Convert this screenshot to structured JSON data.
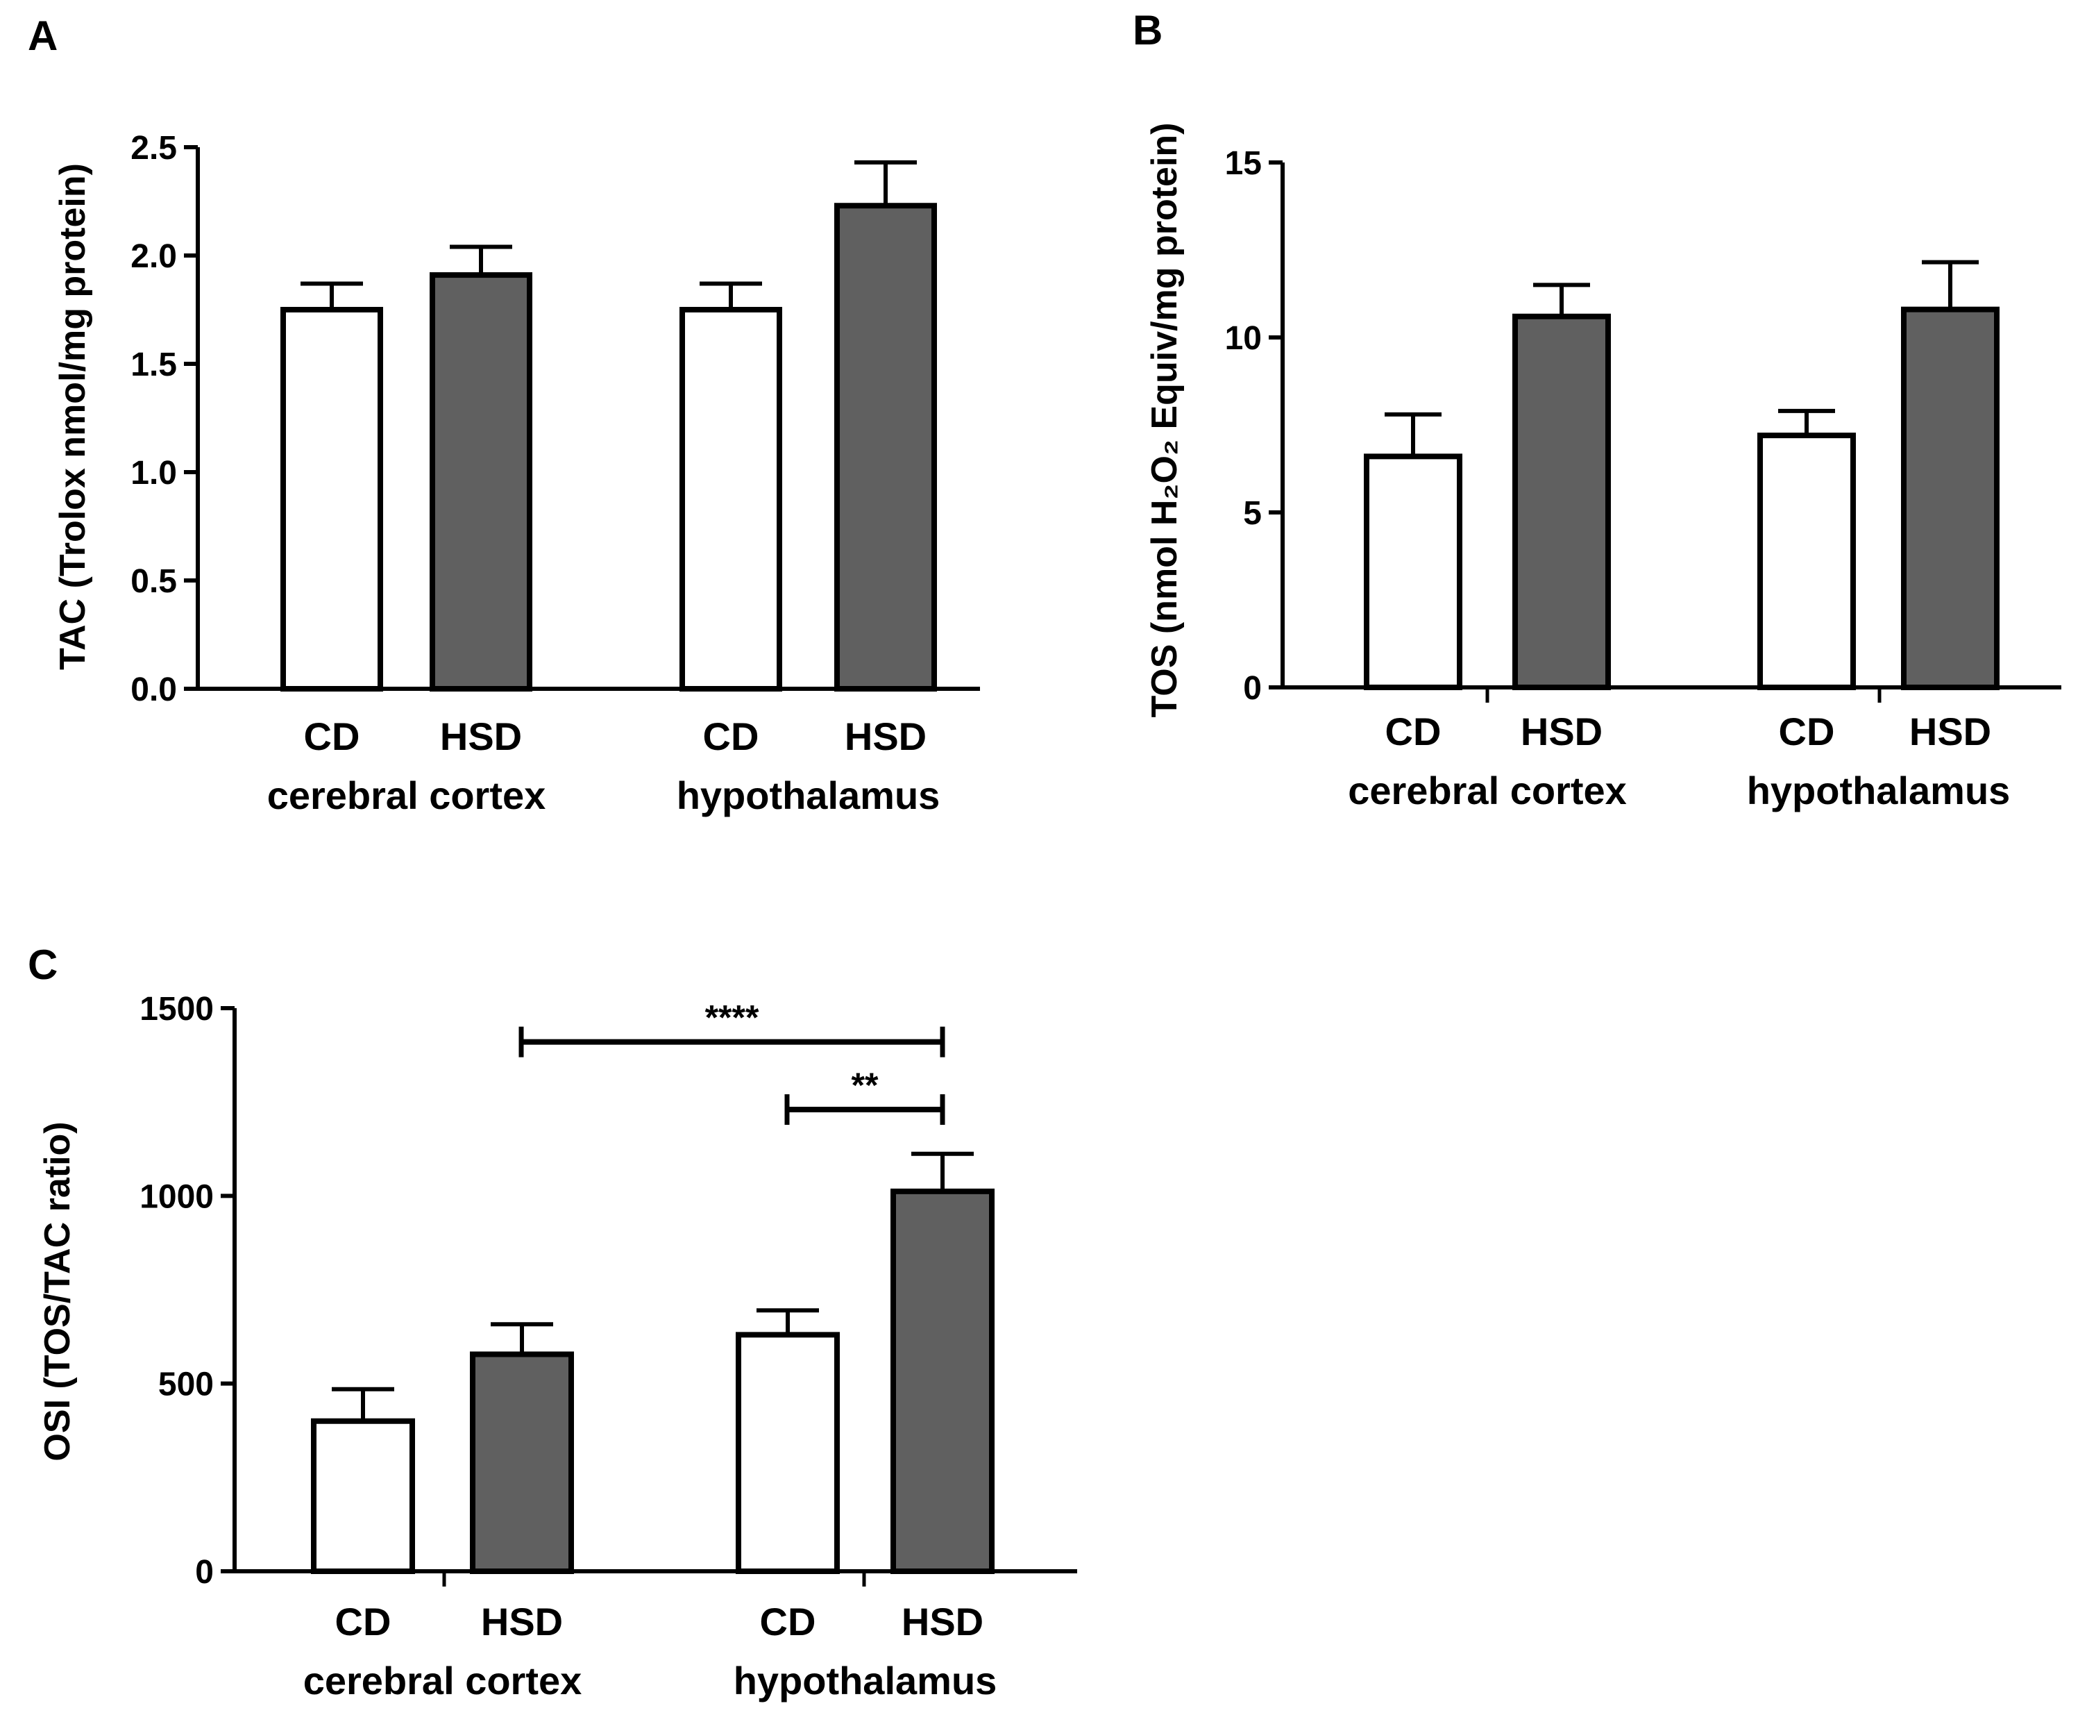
{
  "colors": {
    "cd_fill": "#ffffff",
    "hsd_fill": "#606060",
    "stroke": "#000000"
  },
  "chart_data": [
    {
      "panel": "A",
      "type": "bar",
      "ylabel": "TAC (Trolox nmol/mg protein)",
      "ylim": [
        0,
        2.5
      ],
      "yticks": [
        "0.0",
        "0.5",
        "1.0",
        "1.5",
        "2.0",
        "2.5"
      ],
      "groups": [
        "cerebral cortex",
        "hypothalamus"
      ],
      "categories": [
        "CD",
        "HSD",
        "CD",
        "HSD"
      ],
      "values": [
        1.75,
        1.91,
        1.75,
        2.23
      ],
      "errors": [
        0.12,
        0.13,
        0.12,
        0.2
      ],
      "significance": []
    },
    {
      "panel": "B",
      "type": "bar",
      "ylabel": "TOS (nmol H₂O₂ Equiv/mg protein)",
      "ylim": [
        0,
        15
      ],
      "yticks": [
        "0",
        "5",
        "10",
        "15"
      ],
      "groups": [
        "cerebral cortex",
        "hypothalamus"
      ],
      "categories": [
        "CD",
        "HSD",
        "CD",
        "HSD"
      ],
      "values": [
        6.6,
        10.6,
        7.2,
        10.8
      ],
      "errors": [
        1.2,
        0.9,
        0.7,
        1.35
      ],
      "significance": []
    },
    {
      "panel": "C",
      "type": "bar",
      "ylabel": "OSI (TOS/TAC ratio)",
      "ylim": [
        0,
        1500
      ],
      "yticks": [
        "0",
        "500",
        "1000",
        "1500"
      ],
      "groups": [
        "cerebral cortex",
        "hypothalamus"
      ],
      "categories": [
        "CD",
        "HSD",
        "CD",
        "HSD"
      ],
      "values": [
        400,
        578,
        630,
        1012
      ],
      "errors": [
        85,
        80,
        65,
        100
      ],
      "significance": [
        {
          "from": 1,
          "to": 3,
          "label": "****",
          "value": 1410
        },
        {
          "from": 2,
          "to": 3,
          "label": "**",
          "value": 1230
        }
      ]
    }
  ]
}
